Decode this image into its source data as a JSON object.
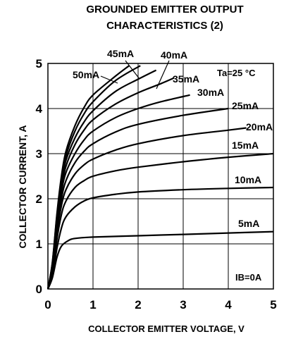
{
  "chart_data": {
    "type": "line",
    "title": [
      "GROUNDED EMITTER OUTPUT",
      "CHARACTERISTICS (2)"
    ],
    "xlabel": "COLLECTOR EMITTER VOLTAGE, V",
    "ylabel": "COLLECTOR CURRENT, A",
    "xlim": [
      0,
      5
    ],
    "ylim": [
      0,
      5
    ],
    "x_ticks": [
      "0",
      "1",
      "2",
      "3",
      "4",
      "5"
    ],
    "y_ticks": [
      "0",
      "1",
      "2",
      "3",
      "4",
      "5"
    ],
    "grid": true,
    "annotation": "Ta=25 °C",
    "ib_zero_label": "IB=0A",
    "series": [
      {
        "name": "5mA",
        "points": [
          [
            0,
            0
          ],
          [
            0.1,
            0.25
          ],
          [
            0.2,
            0.7
          ],
          [
            0.3,
            0.95
          ],
          [
            0.45,
            1.07
          ],
          [
            0.6,
            1.12
          ],
          [
            1,
            1.15
          ],
          [
            2,
            1.18
          ],
          [
            3,
            1.21
          ],
          [
            4,
            1.24
          ],
          [
            5,
            1.27
          ]
        ]
      },
      {
        "name": "10mA",
        "points": [
          [
            0,
            0
          ],
          [
            0.1,
            0.3
          ],
          [
            0.2,
            0.9
          ],
          [
            0.3,
            1.35
          ],
          [
            0.4,
            1.6
          ],
          [
            0.6,
            1.82
          ],
          [
            0.8,
            1.95
          ],
          [
            1,
            2.02
          ],
          [
            1.5,
            2.1
          ],
          [
            2,
            2.15
          ],
          [
            3,
            2.2
          ],
          [
            4,
            2.23
          ],
          [
            5,
            2.25
          ]
        ]
      },
      {
        "name": "15mA",
        "points": [
          [
            0,
            0
          ],
          [
            0.1,
            0.35
          ],
          [
            0.2,
            1.1
          ],
          [
            0.3,
            1.65
          ],
          [
            0.4,
            1.95
          ],
          [
            0.6,
            2.25
          ],
          [
            0.8,
            2.4
          ],
          [
            1,
            2.5
          ],
          [
            1.5,
            2.62
          ],
          [
            2,
            2.7
          ],
          [
            3,
            2.82
          ],
          [
            4,
            2.92
          ],
          [
            5,
            3.0
          ]
        ]
      },
      {
        "name": "20mA",
        "points": [
          [
            0,
            0
          ],
          [
            0.1,
            0.4
          ],
          [
            0.2,
            1.25
          ],
          [
            0.3,
            1.85
          ],
          [
            0.4,
            2.2
          ],
          [
            0.6,
            2.55
          ],
          [
            0.8,
            2.75
          ],
          [
            1,
            2.88
          ],
          [
            1.5,
            3.08
          ],
          [
            2,
            3.22
          ],
          [
            3,
            3.4
          ],
          [
            4,
            3.52
          ],
          [
            4.4,
            3.57
          ]
        ]
      },
      {
        "name": "25mA",
        "points": [
          [
            0,
            0
          ],
          [
            0.1,
            0.45
          ],
          [
            0.2,
            1.35
          ],
          [
            0.3,
            2.0
          ],
          [
            0.4,
            2.4
          ],
          [
            0.6,
            2.8
          ],
          [
            0.8,
            3.05
          ],
          [
            1,
            3.22
          ],
          [
            1.5,
            3.48
          ],
          [
            2,
            3.65
          ],
          [
            3,
            3.85
          ],
          [
            4,
            4.0
          ]
        ]
      },
      {
        "name": "30mA",
        "points": [
          [
            0,
            0
          ],
          [
            0.1,
            0.5
          ],
          [
            0.2,
            1.45
          ],
          [
            0.3,
            2.15
          ],
          [
            0.4,
            2.58
          ],
          [
            0.6,
            3.0
          ],
          [
            0.8,
            3.3
          ],
          [
            1,
            3.5
          ],
          [
            1.5,
            3.8
          ],
          [
            2,
            4.0
          ],
          [
            2.5,
            4.15
          ],
          [
            3.15,
            4.3
          ]
        ]
      },
      {
        "name": "35mA",
        "points": [
          [
            0,
            0
          ],
          [
            0.1,
            0.52
          ],
          [
            0.2,
            1.52
          ],
          [
            0.3,
            2.25
          ],
          [
            0.4,
            2.72
          ],
          [
            0.6,
            3.2
          ],
          [
            0.8,
            3.52
          ],
          [
            1,
            3.75
          ],
          [
            1.5,
            4.1
          ],
          [
            2,
            4.35
          ],
          [
            2.5,
            4.55
          ],
          [
            2.8,
            4.68
          ]
        ]
      },
      {
        "name": "40mA",
        "points": [
          [
            0,
            0
          ],
          [
            0.1,
            0.55
          ],
          [
            0.2,
            1.58
          ],
          [
            0.3,
            2.35
          ],
          [
            0.4,
            2.85
          ],
          [
            0.6,
            3.35
          ],
          [
            0.8,
            3.7
          ],
          [
            1,
            3.95
          ],
          [
            1.5,
            4.38
          ],
          [
            2,
            4.65
          ],
          [
            2.4,
            4.85
          ]
        ]
      },
      {
        "name": "45mA",
        "points": [
          [
            0,
            0
          ],
          [
            0.1,
            0.58
          ],
          [
            0.2,
            1.62
          ],
          [
            0.3,
            2.42
          ],
          [
            0.4,
            2.95
          ],
          [
            0.6,
            3.5
          ],
          [
            0.8,
            3.88
          ],
          [
            1,
            4.15
          ],
          [
            1.5,
            4.62
          ],
          [
            2.05,
            4.95
          ]
        ]
      },
      {
        "name": "50mA",
        "points": [
          [
            0,
            0
          ],
          [
            0.1,
            0.6
          ],
          [
            0.2,
            1.66
          ],
          [
            0.3,
            2.5
          ],
          [
            0.4,
            3.05
          ],
          [
            0.6,
            3.62
          ],
          [
            0.8,
            4.02
          ],
          [
            1,
            4.3
          ],
          [
            1.5,
            4.72
          ],
          [
            1.8,
            4.95
          ]
        ]
      }
    ]
  }
}
